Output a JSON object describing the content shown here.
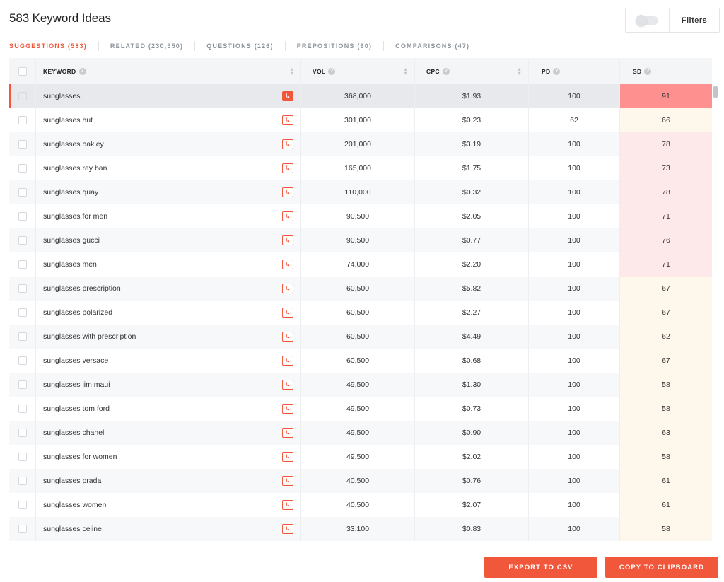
{
  "header": {
    "title": "583 Keyword Ideas",
    "filters_label": "Filters"
  },
  "tabs": [
    {
      "label": "SUGGESTIONS (583)",
      "active": true
    },
    {
      "label": "RELATED (230,550)",
      "active": false
    },
    {
      "label": "QUESTIONS (126)",
      "active": false
    },
    {
      "label": "PREPOSITIONS (60)",
      "active": false
    },
    {
      "label": "COMPARISONS (47)",
      "active": false
    }
  ],
  "table": {
    "headers": {
      "keyword": "KEYWORD",
      "vol": "VOL",
      "cpc": "CPC",
      "pd": "PD",
      "sd": "SD"
    },
    "rows": [
      {
        "keyword": "sunglasses",
        "vol": "368,000",
        "cpc": "$1.93",
        "pd": "100",
        "sd": "91"
      },
      {
        "keyword": "sunglasses hut",
        "vol": "301,000",
        "cpc": "$0.23",
        "pd": "62",
        "sd": "66"
      },
      {
        "keyword": "sunglasses oakley",
        "vol": "201,000",
        "cpc": "$3.19",
        "pd": "100",
        "sd": "78"
      },
      {
        "keyword": "sunglasses ray ban",
        "vol": "165,000",
        "cpc": "$1.75",
        "pd": "100",
        "sd": "73"
      },
      {
        "keyword": "sunglasses quay",
        "vol": "110,000",
        "cpc": "$0.32",
        "pd": "100",
        "sd": "78"
      },
      {
        "keyword": "sunglasses for men",
        "vol": "90,500",
        "cpc": "$2.05",
        "pd": "100",
        "sd": "71"
      },
      {
        "keyword": "sunglasses gucci",
        "vol": "90,500",
        "cpc": "$0.77",
        "pd": "100",
        "sd": "76"
      },
      {
        "keyword": "sunglasses men",
        "vol": "74,000",
        "cpc": "$2.20",
        "pd": "100",
        "sd": "71"
      },
      {
        "keyword": "sunglasses prescription",
        "vol": "60,500",
        "cpc": "$5.82",
        "pd": "100",
        "sd": "67"
      },
      {
        "keyword": "sunglasses polarized",
        "vol": "60,500",
        "cpc": "$2.27",
        "pd": "100",
        "sd": "67"
      },
      {
        "keyword": "sunglasses with prescription",
        "vol": "60,500",
        "cpc": "$4.49",
        "pd": "100",
        "sd": "62"
      },
      {
        "keyword": "sunglasses versace",
        "vol": "60,500",
        "cpc": "$0.68",
        "pd": "100",
        "sd": "67"
      },
      {
        "keyword": "sunglasses jim maui",
        "vol": "49,500",
        "cpc": "$1.30",
        "pd": "100",
        "sd": "58"
      },
      {
        "keyword": "sunglasses tom ford",
        "vol": "49,500",
        "cpc": "$0.73",
        "pd": "100",
        "sd": "58"
      },
      {
        "keyword": "sunglasses chanel",
        "vol": "49,500",
        "cpc": "$0.90",
        "pd": "100",
        "sd": "63"
      },
      {
        "keyword": "sunglasses for women",
        "vol": "49,500",
        "cpc": "$2.02",
        "pd": "100",
        "sd": "58"
      },
      {
        "keyword": "sunglasses prada",
        "vol": "40,500",
        "cpc": "$0.76",
        "pd": "100",
        "sd": "61"
      },
      {
        "keyword": "sunglasses women",
        "vol": "40,500",
        "cpc": "$2.07",
        "pd": "100",
        "sd": "61"
      },
      {
        "keyword": "sunglasses celine",
        "vol": "33,100",
        "cpc": "$0.83",
        "pd": "100",
        "sd": "58"
      }
    ]
  },
  "actions": {
    "export_label": "EXPORT TO CSV",
    "copy_label": "COPY TO CLIPBOARD"
  },
  "colors": {
    "accent": "#f0573b",
    "sd_high": "#ff9090",
    "sd_mid": "#fde9e9",
    "sd_low": "#fdf7ec"
  },
  "icons": {
    "go": "arrow-turn-icon",
    "info": "info-icon",
    "sort": "sort-icon"
  }
}
